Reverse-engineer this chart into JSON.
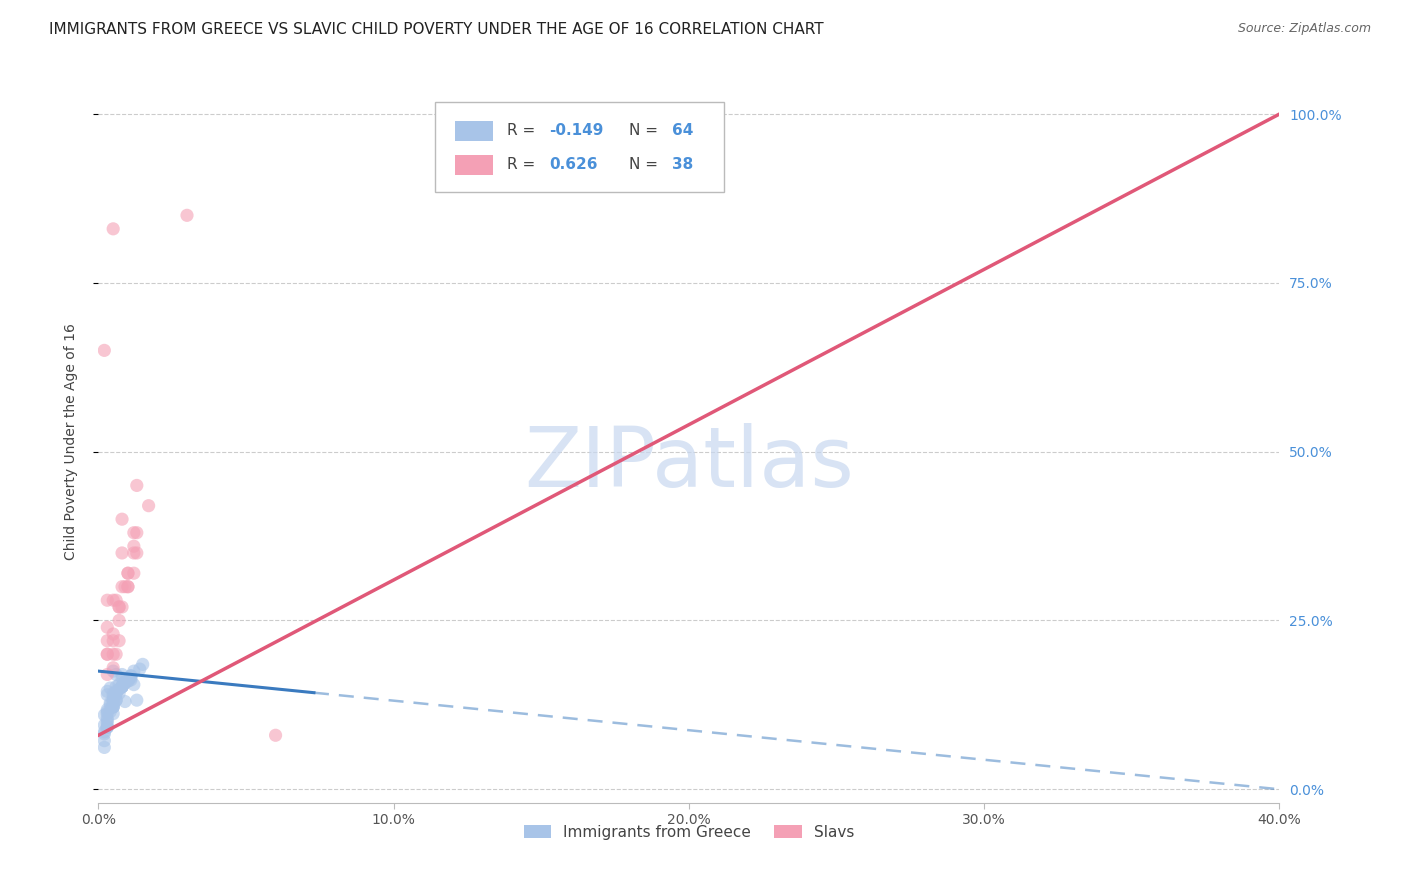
{
  "title": "IMMIGRANTS FROM GREECE VS SLAVIC CHILD POVERTY UNDER THE AGE OF 16 CORRELATION CHART",
  "source": "Source: ZipAtlas.com",
  "ylabel": "Child Poverty Under the Age of 16",
  "xlim": [
    0.0,
    0.4
  ],
  "ylim": [
    -0.02,
    1.05
  ],
  "ytick_vals": [
    0.0,
    0.25,
    0.5,
    0.75,
    1.0
  ],
  "ytick_labels": [
    "0.0%",
    "25.0%",
    "50.0%",
    "75.0%",
    "100.0%"
  ],
  "xtick_vals": [
    0.0,
    0.1,
    0.2,
    0.3,
    0.4
  ],
  "xtick_labels": [
    "0.0%",
    "10.0%",
    "20.0%",
    "30.0%",
    "40.0%"
  ],
  "greece_color": "#a8c4e8",
  "slavic_color": "#f4a0b5",
  "greece_line_color": "#3a7abf",
  "slavic_line_color": "#e05878",
  "greece_scatter_x": [
    0.005,
    0.007,
    0.003,
    0.008,
    0.004,
    0.009,
    0.006,
    0.003,
    0.01,
    0.004,
    0.012,
    0.007,
    0.005,
    0.004,
    0.002,
    0.008,
    0.011,
    0.005,
    0.006,
    0.003,
    0.013,
    0.009,
    0.005,
    0.002,
    0.006,
    0.003,
    0.008,
    0.005,
    0.011,
    0.003,
    0.015,
    0.007,
    0.005,
    0.009,
    0.003,
    0.002,
    0.012,
    0.008,
    0.005,
    0.003,
    0.006,
    0.011,
    0.005,
    0.003,
    0.008,
    0.002,
    0.01,
    0.006,
    0.004,
    0.003,
    0.014,
    0.008,
    0.005,
    0.002,
    0.006,
    0.009,
    0.003,
    0.011,
    0.005,
    0.006,
    0.003,
    0.008,
    0.005,
    0.002
  ],
  "greece_scatter_y": [
    0.175,
    0.155,
    0.14,
    0.165,
    0.15,
    0.13,
    0.17,
    0.145,
    0.16,
    0.125,
    0.155,
    0.148,
    0.138,
    0.128,
    0.11,
    0.17,
    0.162,
    0.142,
    0.152,
    0.118,
    0.132,
    0.158,
    0.128,
    0.095,
    0.142,
    0.112,
    0.152,
    0.132,
    0.165,
    0.115,
    0.185,
    0.142,
    0.125,
    0.158,
    0.105,
    0.085,
    0.175,
    0.152,
    0.132,
    0.098,
    0.145,
    0.168,
    0.122,
    0.102,
    0.152,
    0.082,
    0.162,
    0.132,
    0.115,
    0.092,
    0.178,
    0.152,
    0.122,
    0.072,
    0.132,
    0.158,
    0.092,
    0.168,
    0.122,
    0.142,
    0.092,
    0.152,
    0.112,
    0.062
  ],
  "slavic_scatter_x": [
    0.002,
    0.005,
    0.003,
    0.007,
    0.009,
    0.005,
    0.01,
    0.003,
    0.007,
    0.012,
    0.005,
    0.008,
    0.013,
    0.003,
    0.01,
    0.006,
    0.017,
    0.005,
    0.012,
    0.008,
    0.003,
    0.013,
    0.007,
    0.01,
    0.005,
    0.03,
    0.008,
    0.012,
    0.003,
    0.007,
    0.01,
    0.005,
    0.013,
    0.06,
    0.003,
    0.008,
    0.012,
    0.006
  ],
  "slavic_scatter_y": [
    0.65,
    0.22,
    0.28,
    0.22,
    0.3,
    0.28,
    0.32,
    0.2,
    0.27,
    0.38,
    0.83,
    0.35,
    0.38,
    0.24,
    0.3,
    0.28,
    0.42,
    0.2,
    0.35,
    0.4,
    0.22,
    0.45,
    0.27,
    0.32,
    0.18,
    0.85,
    0.3,
    0.36,
    0.2,
    0.25,
    0.3,
    0.23,
    0.35,
    0.08,
    0.17,
    0.27,
    0.32,
    0.2
  ],
  "greece_trend_x": [
    0.0,
    0.073,
    0.073,
    0.4
  ],
  "greece_trend_y": [
    0.175,
    0.145,
    0.145,
    0.0
  ],
  "greece_trend_solid_end": 0.073,
  "slavic_trend_x0": 0.0,
  "slavic_trend_y0": 0.08,
  "slavic_trend_x1": 0.4,
  "slavic_trend_y1": 1.0,
  "watermark_text": "ZIPatlas",
  "watermark_color": "#c8d8f0",
  "bg_color": "#ffffff",
  "scatter_alpha": 0.6,
  "scatter_size": 90,
  "title_fontsize": 11,
  "ylabel_fontsize": 10,
  "tick_fontsize": 10,
  "right_tick_color": "#4a90d9",
  "source_text": "Source: ZipAtlas.com",
  "legend_label_greece": "Immigrants from Greece",
  "legend_label_slavs": "Slavs",
  "legend_R_greece": "-0.149",
  "legend_N_greece": "64",
  "legend_R_slavs": "0.626",
  "legend_N_slavs": "38"
}
